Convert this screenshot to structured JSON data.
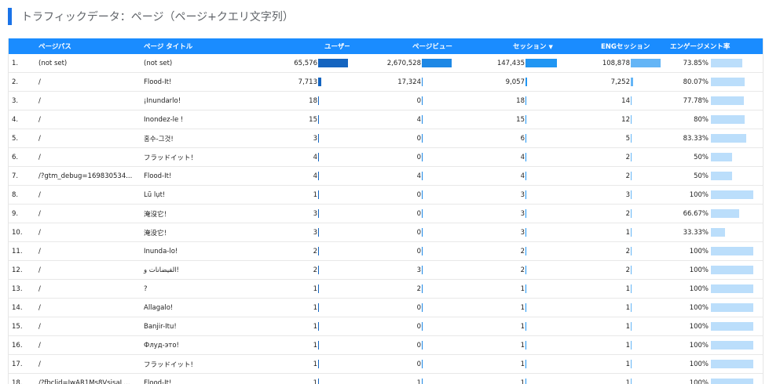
{
  "header": {
    "title": "トラフィックデータ：ページ（ページ+クエリ文字列）"
  },
  "columns": {
    "index": "",
    "page_path": "ページパス",
    "page_title": "ページ タイトル",
    "users": "ユーザー",
    "pageviews": "ページビュー",
    "sessions": "セッション",
    "eng_sessions": "ENGセッション",
    "engagement_rate": "エンゲージメント率"
  },
  "colors": {
    "header_bg": "#1a8cff",
    "users_bar": "#1565c0",
    "pageviews_bar": "#1e88e5",
    "sessions_bar": "#2196f3",
    "eng_bar": "#64b5f6",
    "rate_bar": "#bbdefb"
  },
  "rows": [
    {
      "index": "1.",
      "path": "(not set)",
      "title": "(not set)",
      "users": "65,576",
      "pageviews": "2,670,528",
      "sessions": "147,435",
      "eng": "108,878",
      "rate": "73.85%",
      "rate_value": 73.85
    },
    {
      "index": "2.",
      "path": "/",
      "title": "Flood-It!",
      "users": "7,713",
      "pageviews": "17,324",
      "sessions": "9,057",
      "eng": "7,252",
      "rate": "80.07%",
      "rate_value": 80.07
    },
    {
      "index": "3.",
      "path": "/",
      "title": "¡Inundarlo!",
      "users": "18",
      "pageviews": "0",
      "sessions": "18",
      "eng": "14",
      "rate": "77.78%",
      "rate_value": 77.78
    },
    {
      "index": "4.",
      "path": "/",
      "title": "Inondez-le !",
      "users": "15",
      "pageviews": "4",
      "sessions": "15",
      "eng": "12",
      "rate": "80%",
      "rate_value": 80
    },
    {
      "index": "5.",
      "path": "/",
      "title": "홍수-그것!",
      "users": "3",
      "pageviews": "0",
      "sessions": "6",
      "eng": "5",
      "rate": "83.33%",
      "rate_value": 83.33
    },
    {
      "index": "6.",
      "path": "/",
      "title": "フラッドイット！",
      "users": "4",
      "pageviews": "0",
      "sessions": "4",
      "eng": "2",
      "rate": "50%",
      "rate_value": 50
    },
    {
      "index": "7.",
      "path": "/?gtm_debug=169830534...",
      "title": "Flood-It!",
      "users": "4",
      "pageviews": "4",
      "sessions": "4",
      "eng": "2",
      "rate": "50%",
      "rate_value": 50
    },
    {
      "index": "8.",
      "path": "/",
      "title": "Lũ lụt!",
      "users": "1",
      "pageviews": "0",
      "sessions": "3",
      "eng": "3",
      "rate": "100%",
      "rate_value": 100
    },
    {
      "index": "9.",
      "path": "/",
      "title": "淹沒它！",
      "users": "3",
      "pageviews": "0",
      "sessions": "3",
      "eng": "2",
      "rate": "66.67%",
      "rate_value": 66.67
    },
    {
      "index": "10.",
      "path": "/",
      "title": "淹没它！",
      "users": "3",
      "pageviews": "0",
      "sessions": "3",
      "eng": "1",
      "rate": "33.33%",
      "rate_value": 33.33
    },
    {
      "index": "11.",
      "path": "/",
      "title": "Inunda-lo!",
      "users": "2",
      "pageviews": "0",
      "sessions": "2",
      "eng": "2",
      "rate": "100%",
      "rate_value": 100
    },
    {
      "index": "12.",
      "path": "/",
      "title": "الفيضانات و!",
      "users": "2",
      "pageviews": "3",
      "sessions": "2",
      "eng": "2",
      "rate": "100%",
      "rate_value": 100
    },
    {
      "index": "13.",
      "path": "/",
      "title": "?",
      "users": "1",
      "pageviews": "2",
      "sessions": "1",
      "eng": "1",
      "rate": "100%",
      "rate_value": 100
    },
    {
      "index": "14.",
      "path": "/",
      "title": "Allagalo!",
      "users": "1",
      "pageviews": "0",
      "sessions": "1",
      "eng": "1",
      "rate": "100%",
      "rate_value": 100
    },
    {
      "index": "15.",
      "path": "/",
      "title": "Banjir-Itu!",
      "users": "1",
      "pageviews": "0",
      "sessions": "1",
      "eng": "1",
      "rate": "100%",
      "rate_value": 100
    },
    {
      "index": "16.",
      "path": "/",
      "title": "Флуд-это!",
      "users": "1",
      "pageviews": "0",
      "sessions": "1",
      "eng": "1",
      "rate": "100%",
      "rate_value": 100
    },
    {
      "index": "17.",
      "path": "/",
      "title": "フラッドイット!",
      "users": "1",
      "pageviews": "0",
      "sessions": "1",
      "eng": "1",
      "rate": "100%",
      "rate_value": 100
    },
    {
      "index": "18.",
      "path": "/?fbclid=IwAR1Ms8VsisaL...",
      "title": "Flood-It!",
      "users": "1",
      "pageviews": "1",
      "sessions": "1",
      "eng": "1",
      "rate": "100%",
      "rate_value": 100
    }
  ]
}
